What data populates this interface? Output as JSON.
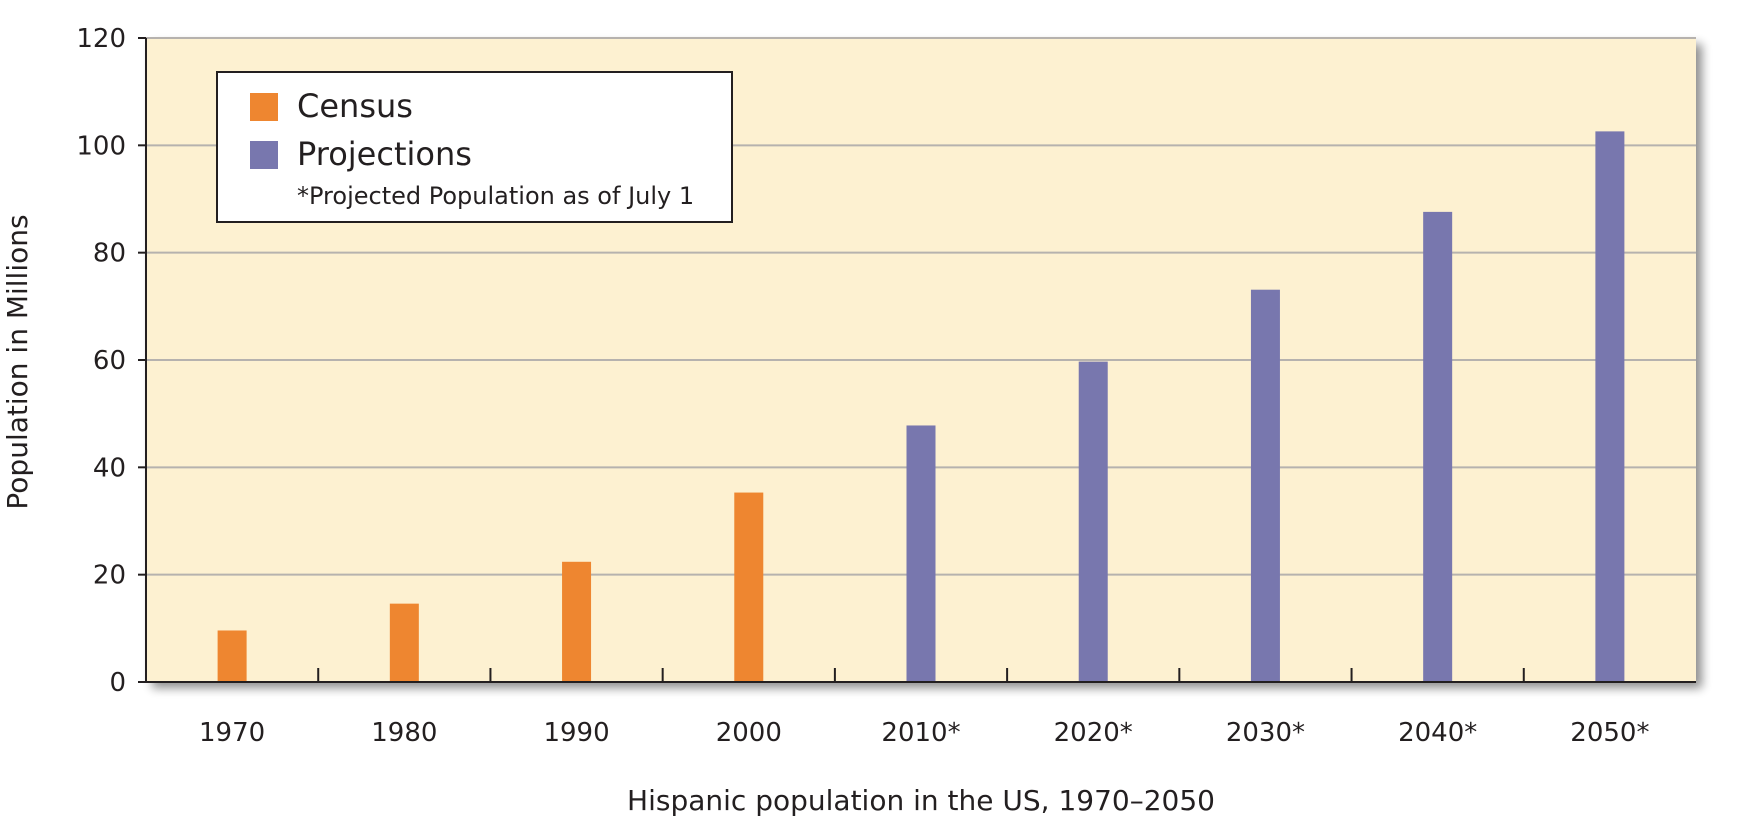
{
  "chart_data": {
    "type": "bar",
    "xlabel": "Hispanic population in the US, 1970–2050",
    "ylabel": "Population in Millions",
    "ylim": [
      0,
      120
    ],
    "yticks": [
      0,
      20,
      40,
      60,
      80,
      100,
      120
    ],
    "grid": true,
    "legend_position": "top-left",
    "categories": [
      "1970",
      "1980",
      "1990",
      "2000",
      "2010*",
      "2020*",
      "2030*",
      "2040*",
      "2050*"
    ],
    "series": [
      {
        "name": "Census",
        "color": "#ee8630",
        "values": [
          9.6,
          14.6,
          22.4,
          35.3,
          null,
          null,
          null,
          null,
          null
        ]
      },
      {
        "name": "Projections",
        "color": "#7877ae",
        "values": [
          null,
          null,
          null,
          null,
          47.8,
          59.7,
          73.1,
          87.6,
          102.6
        ]
      }
    ],
    "legend_note": "*Projected Population as of July 1",
    "colors": {
      "plot_background": "#fdf1d1",
      "gridline": "#b6b2ae",
      "axis": "#231f20"
    }
  }
}
